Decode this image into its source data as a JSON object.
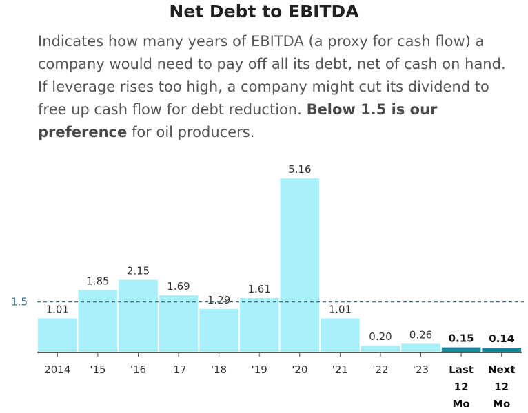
{
  "header": {
    "title": "Net Debt to EBITDA",
    "description_pre": "Indicates how many years of EBITDA (a proxy for cash flow) a company would need to pay off all its debt, net of cash on hand. If leverage rises too high, a company might cut its dividend to free up cash flow for debt reduction. ",
    "description_bold": "Below 1.5 is our preference",
    "description_post": " for oil producers."
  },
  "colors": {
    "bar": "#a8f0fb",
    "bar_highlight": "#13869a",
    "reference_line": "#3d6f80",
    "axis": "#555555"
  },
  "chart_data": {
    "type": "bar",
    "title": "Net Debt to EBITDA",
    "xlabel": "",
    "ylabel": "",
    "ylim": [
      0,
      5.16
    ],
    "grid": false,
    "categories": [
      [
        "2014"
      ],
      [
        "'15"
      ],
      [
        "'16"
      ],
      [
        "'17"
      ],
      [
        "'18"
      ],
      [
        "'19"
      ],
      [
        "'20"
      ],
      [
        "'21"
      ],
      [
        "'22"
      ],
      [
        "'23"
      ],
      [
        "Last",
        "12",
        "Mo"
      ],
      [
        "Next",
        "12",
        "Mo"
      ]
    ],
    "values": [
      1.01,
      1.85,
      2.15,
      1.69,
      1.29,
      1.61,
      5.16,
      1.01,
      0.2,
      0.26,
      0.15,
      0.14
    ],
    "value_labels": [
      "1.01",
      "1.85",
      "2.15",
      "1.69",
      "1.29",
      "1.61",
      "5.16",
      "1.01",
      "0.20",
      "0.26",
      "0.15",
      "0.14"
    ],
    "highlighted": [
      false,
      false,
      false,
      false,
      false,
      false,
      false,
      false,
      false,
      false,
      true,
      true
    ],
    "reference_line": {
      "value": 1.5,
      "label": "1.5"
    }
  }
}
